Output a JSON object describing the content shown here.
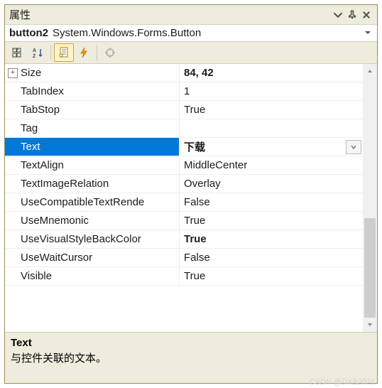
{
  "colors": {
    "panel_bg": "#eeecdc",
    "selection_bg": "#0078d7",
    "selection_fg": "#ffffff",
    "border": "#9a8f5c"
  },
  "titlebar": {
    "title": "属性"
  },
  "object": {
    "name": "button2",
    "type": "System.Windows.Forms.Button"
  },
  "toolbar": {
    "icons": [
      "categorized-icon",
      "alpha-sort-icon",
      "properties-icon",
      "events-icon",
      "property-pages-icon"
    ],
    "selected_index": 2
  },
  "rows": [
    {
      "name": "Size",
      "value": "84, 42",
      "expand": "plus",
      "bold_value": true,
      "selected": false
    },
    {
      "name": "TabIndex",
      "value": "1",
      "indent": true
    },
    {
      "name": "TabStop",
      "value": "True",
      "indent": true
    },
    {
      "name": "Tag",
      "value": "",
      "indent": true
    },
    {
      "name": "Text",
      "value": "下载",
      "indent": true,
      "bold_value": true,
      "selected": true,
      "dropdown": true
    },
    {
      "name": "TextAlign",
      "value": "MiddleCenter",
      "indent": true
    },
    {
      "name": "TextImageRelation",
      "value": "Overlay",
      "indent": true
    },
    {
      "name": "UseCompatibleTextRende",
      "value": "False",
      "indent": true
    },
    {
      "name": "UseMnemonic",
      "value": "True",
      "indent": true
    },
    {
      "name": "UseVisualStyleBackColor",
      "value": "True",
      "indent": true,
      "bold_value": true
    },
    {
      "name": "UseWaitCursor",
      "value": "False",
      "indent": true
    },
    {
      "name": "Visible",
      "value": "True",
      "indent": true
    }
  ],
  "description": {
    "title": "Text",
    "text": "与控件关联的文本。"
  },
  "watermark": "CSDN @DXB2021"
}
